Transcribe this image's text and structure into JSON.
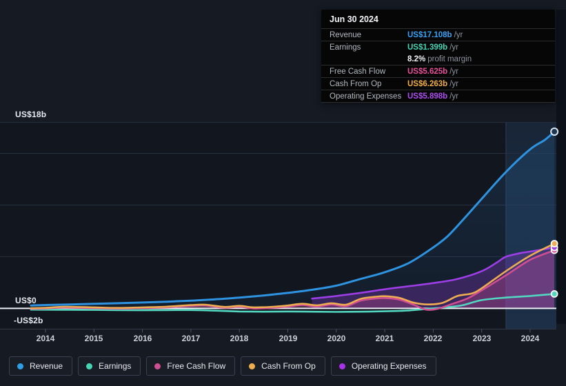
{
  "tooltip": {
    "date": "Jun 30 2024",
    "rows": [
      {
        "label": "Revenue",
        "value": "US$17.108b",
        "suffix": "/yr",
        "color": "#36a2f5"
      },
      {
        "label": "Earnings",
        "value": "US$1.399b",
        "suffix": "/yr",
        "color": "#45d6b5"
      },
      {
        "label": "Free Cash Flow",
        "value": "US$5.625b",
        "suffix": "/yr",
        "color": "#e8509a"
      },
      {
        "label": "Cash From Op",
        "value": "US$6.263b",
        "suffix": "/yr",
        "color": "#f0ad45"
      },
      {
        "label": "Operating Expenses",
        "value": "US$5.898b",
        "suffix": "/yr",
        "color": "#ae4ef0"
      }
    ],
    "profit_margin": {
      "value": "8.2%",
      "label": "profit margin"
    }
  },
  "y_axis": {
    "top_label": "US$18b",
    "zero_label": "US$0",
    "negative_label": "-US$2b"
  },
  "x_axis": {
    "years": [
      "2014",
      "2015",
      "2016",
      "2017",
      "2018",
      "2019",
      "2020",
      "2021",
      "2022",
      "2023",
      "2024"
    ]
  },
  "legend": [
    {
      "label": "Revenue",
      "color": "#2e9fe6"
    },
    {
      "label": "Earnings",
      "color": "#45d6b5"
    },
    {
      "label": "Free Cash Flow",
      "color": "#cf4f93"
    },
    {
      "label": "Cash From Op",
      "color": "#edaf4e"
    },
    {
      "label": "Operating Expenses",
      "color": "#a832e8"
    }
  ],
  "chart_data": {
    "type": "line",
    "title": "Earnings and revenue history",
    "y_unit": "US$ billions per year",
    "ylim": [
      -2,
      18
    ],
    "x_range": [
      2013.7,
      2024.5
    ],
    "gridline_values": [
      18,
      15,
      10,
      5
    ],
    "zero_line": 0,
    "axis_min_label_value": -2,
    "highlight_span_years": [
      2023.5,
      2024.55
    ],
    "latest_date": "Jun 30 2024",
    "series": [
      {
        "name": "Revenue",
        "color": "#2e93e0",
        "fill": "rgba(47,140,220,0.10)",
        "end_value": 17.108,
        "points": [
          [
            2013.7,
            0.28
          ],
          [
            2014,
            0.33
          ],
          [
            2014.5,
            0.38
          ],
          [
            2015,
            0.44
          ],
          [
            2015.5,
            0.5
          ],
          [
            2016,
            0.57
          ],
          [
            2016.5,
            0.65
          ],
          [
            2017,
            0.75
          ],
          [
            2017.5,
            0.88
          ],
          [
            2018,
            1.05
          ],
          [
            2018.5,
            1.25
          ],
          [
            2019,
            1.5
          ],
          [
            2019.5,
            1.8
          ],
          [
            2020,
            2.2
          ],
          [
            2020.5,
            2.85
          ],
          [
            2021,
            3.5
          ],
          [
            2021.5,
            4.4
          ],
          [
            2022,
            5.9
          ],
          [
            2022.3,
            7.0
          ],
          [
            2022.6,
            8.5
          ],
          [
            2023,
            10.6
          ],
          [
            2023.5,
            13.2
          ],
          [
            2024,
            15.4
          ],
          [
            2024.3,
            16.3
          ],
          [
            2024.5,
            17.108
          ]
        ]
      },
      {
        "name": "Earnings",
        "color": "#52d8c0",
        "fill": null,
        "end_value": 1.399,
        "points": [
          [
            2013.7,
            -0.12
          ],
          [
            2014,
            -0.13
          ],
          [
            2014.5,
            -0.14
          ],
          [
            2015,
            -0.15
          ],
          [
            2015.5,
            -0.17
          ],
          [
            2016,
            -0.18
          ],
          [
            2016.5,
            -0.17
          ],
          [
            2017,
            -0.16
          ],
          [
            2017.5,
            -0.22
          ],
          [
            2018,
            -0.3
          ],
          [
            2018.5,
            -0.32
          ],
          [
            2019,
            -0.3
          ],
          [
            2019.5,
            -0.32
          ],
          [
            2020,
            -0.34
          ],
          [
            2020.5,
            -0.32
          ],
          [
            2021,
            -0.28
          ],
          [
            2021.5,
            -0.2
          ],
          [
            2021.8,
            -0.08
          ],
          [
            2022,
            0.0
          ],
          [
            2022.3,
            0.12
          ],
          [
            2022.6,
            0.3
          ],
          [
            2023,
            0.8
          ],
          [
            2023.5,
            1.05
          ],
          [
            2024,
            1.2
          ],
          [
            2024.5,
            1.399
          ]
        ]
      },
      {
        "name": "Free Cash Flow",
        "color": "#cf4f92",
        "fill": "rgba(205,80,145,0.30)",
        "end_value": 5.625,
        "points": [
          [
            2013.7,
            -0.03
          ],
          [
            2014,
            0.0
          ],
          [
            2014.4,
            0.08
          ],
          [
            2015,
            0.02
          ],
          [
            2015.5,
            -0.02
          ],
          [
            2016,
            0.03
          ],
          [
            2016.5,
            0.1
          ],
          [
            2017,
            0.24
          ],
          [
            2017.3,
            0.28
          ],
          [
            2017.7,
            0.06
          ],
          [
            2018,
            0.16
          ],
          [
            2018.3,
            -0.02
          ],
          [
            2018.7,
            0.06
          ],
          [
            2019,
            0.18
          ],
          [
            2019.3,
            0.33
          ],
          [
            2019.6,
            0.18
          ],
          [
            2019.9,
            0.38
          ],
          [
            2020.2,
            0.22
          ],
          [
            2020.5,
            0.75
          ],
          [
            2020.8,
            0.95
          ],
          [
            2021,
            1.0
          ],
          [
            2021.3,
            0.85
          ],
          [
            2021.6,
            0.35
          ],
          [
            2021.85,
            -0.12
          ],
          [
            2022.1,
            -0.03
          ],
          [
            2022.4,
            0.45
          ],
          [
            2022.7,
            0.95
          ],
          [
            2023,
            1.75
          ],
          [
            2023.5,
            3.2
          ],
          [
            2024,
            4.7
          ],
          [
            2024.5,
            5.625
          ]
        ]
      },
      {
        "name": "Cash From Op",
        "color": "#eead52",
        "fill": null,
        "end_value": 6.263,
        "points": [
          [
            2013.7,
            0.02
          ],
          [
            2014,
            0.06
          ],
          [
            2014.4,
            0.16
          ],
          [
            2015,
            0.1
          ],
          [
            2015.5,
            0.05
          ],
          [
            2016,
            0.1
          ],
          [
            2016.5,
            0.17
          ],
          [
            2017,
            0.32
          ],
          [
            2017.3,
            0.36
          ],
          [
            2017.7,
            0.14
          ],
          [
            2018,
            0.25
          ],
          [
            2018.3,
            0.1
          ],
          [
            2018.7,
            0.16
          ],
          [
            2019,
            0.28
          ],
          [
            2019.3,
            0.45
          ],
          [
            2019.6,
            0.3
          ],
          [
            2019.9,
            0.5
          ],
          [
            2020.2,
            0.36
          ],
          [
            2020.5,
            0.92
          ],
          [
            2020.8,
            1.12
          ],
          [
            2021,
            1.18
          ],
          [
            2021.3,
            1.02
          ],
          [
            2021.6,
            0.55
          ],
          [
            2021.9,
            0.38
          ],
          [
            2022.2,
            0.55
          ],
          [
            2022.5,
            1.2
          ],
          [
            2022.8,
            1.45
          ],
          [
            2023,
            1.95
          ],
          [
            2023.5,
            3.6
          ],
          [
            2024,
            5.1
          ],
          [
            2024.5,
            6.263
          ]
        ]
      },
      {
        "name": "Operating Expenses",
        "color": "#9d3ee6",
        "fill": "rgba(150,60,220,0.28)",
        "end_value": 5.898,
        "points": [
          [
            2019.5,
            0.95
          ],
          [
            2020,
            1.2
          ],
          [
            2020.5,
            1.5
          ],
          [
            2021,
            1.85
          ],
          [
            2021.5,
            2.15
          ],
          [
            2022,
            2.45
          ],
          [
            2022.5,
            2.85
          ],
          [
            2023,
            3.6
          ],
          [
            2023.3,
            4.4
          ],
          [
            2023.5,
            5.0
          ],
          [
            2023.8,
            5.35
          ],
          [
            2024,
            5.5
          ],
          [
            2024.5,
            5.898
          ]
        ]
      }
    ]
  }
}
